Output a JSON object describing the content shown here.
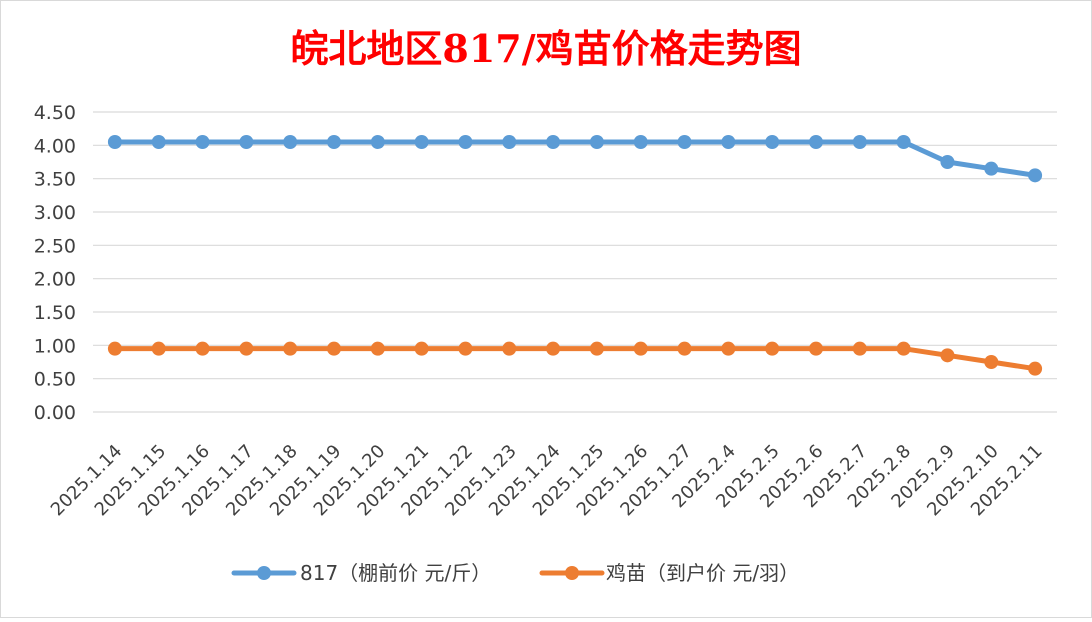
{
  "chart_data": {
    "type": "line",
    "title": "皖北地区817/鸡苗价格走势图",
    "title_color": "#ff0000",
    "categories": [
      "2025.1.14",
      "2025.1.15",
      "2025.1.16",
      "2025.1.17",
      "2025.1.18",
      "2025.1.19",
      "2025.1.20",
      "2025.1.21",
      "2025.1.22",
      "2025.1.23",
      "2025.1.24",
      "2025.1.25",
      "2025.1.26",
      "2025.1.27",
      "2025.2.4",
      "2025.2.5",
      "2025.2.6",
      "2025.2.7",
      "2025.2.8",
      "2025.2.9",
      "2025.2.10",
      "2025.2.11"
    ],
    "series": [
      {
        "name": "817（棚前价 元/斤）",
        "color": "#5b9bd5",
        "values": [
          4.05,
          4.05,
          4.05,
          4.05,
          4.05,
          4.05,
          4.05,
          4.05,
          4.05,
          4.05,
          4.05,
          4.05,
          4.05,
          4.05,
          4.05,
          4.05,
          4.05,
          4.05,
          4.05,
          3.75,
          3.65,
          3.55
        ]
      },
      {
        "name": "鸡苗（到户价 元/羽）",
        "color": "#ed7d31",
        "values": [
          0.95,
          0.95,
          0.95,
          0.95,
          0.95,
          0.95,
          0.95,
          0.95,
          0.95,
          0.95,
          0.95,
          0.95,
          0.95,
          0.95,
          0.95,
          0.95,
          0.95,
          0.95,
          0.95,
          0.85,
          0.75,
          0.65
        ]
      }
    ],
    "yticks": [
      "0.00",
      "0.50",
      "1.00",
      "1.50",
      "2.00",
      "2.50",
      "3.00",
      "3.50",
      "4.00",
      "4.50"
    ],
    "ylim": [
      0,
      4.5
    ],
    "xlabel": "",
    "ylabel": "",
    "grid": true,
    "legend_position": "bottom"
  }
}
